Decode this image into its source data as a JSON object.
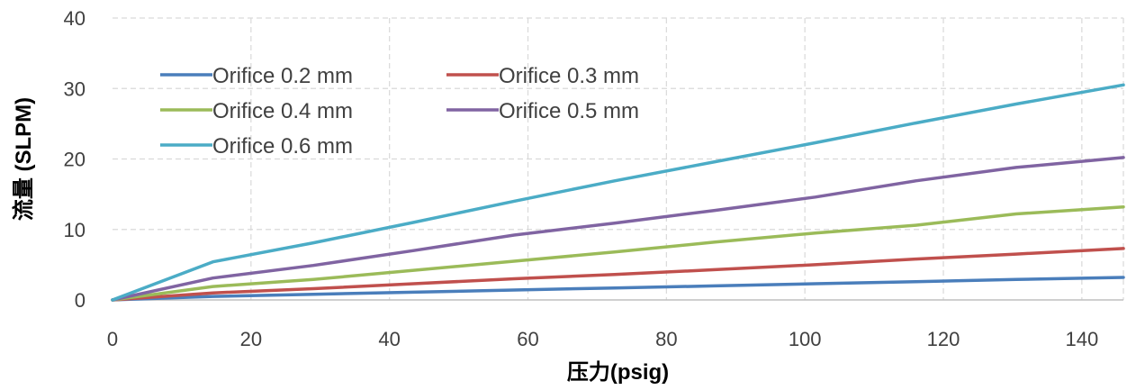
{
  "chart_data": {
    "type": "line",
    "xlabel": "压力(psig)",
    "ylabel": "流量 (SLPM)",
    "xlim": [
      0,
      146
    ],
    "ylim": [
      0,
      40
    ],
    "x_ticks": [
      0,
      20,
      40,
      60,
      80,
      100,
      120,
      140
    ],
    "y_ticks": [
      0,
      10,
      20,
      30,
      40
    ],
    "grid": true,
    "legend_position": "top-left",
    "series": [
      {
        "name": "Orifice 0.2 mm",
        "color": "#4a7ebb",
        "points": [
          [
            0,
            0
          ],
          [
            14.5,
            0.5
          ],
          [
            29,
            0.8
          ],
          [
            43.5,
            1.1
          ],
          [
            58,
            1.4
          ],
          [
            72.5,
            1.7
          ],
          [
            87,
            2.0
          ],
          [
            101.5,
            2.3
          ],
          [
            116,
            2.6
          ],
          [
            130.5,
            2.9
          ],
          [
            146,
            3.2
          ]
        ]
      },
      {
        "name": "Orifice 0.3 mm",
        "color": "#c0504d",
        "points": [
          [
            0,
            0
          ],
          [
            14.5,
            1.0
          ],
          [
            29,
            1.6
          ],
          [
            43.5,
            2.3
          ],
          [
            58,
            3.0
          ],
          [
            72.5,
            3.6
          ],
          [
            87,
            4.3
          ],
          [
            101.5,
            5.0
          ],
          [
            116,
            5.8
          ],
          [
            130.5,
            6.5
          ],
          [
            146,
            7.3
          ]
        ]
      },
      {
        "name": "Orifice 0.4 mm",
        "color": "#9bbb59",
        "points": [
          [
            0,
            0
          ],
          [
            14.5,
            1.9
          ],
          [
            29,
            2.9
          ],
          [
            43.5,
            4.2
          ],
          [
            58,
            5.5
          ],
          [
            72.5,
            6.8
          ],
          [
            87,
            8.2
          ],
          [
            101.5,
            9.5
          ],
          [
            116,
            10.6
          ],
          [
            130.5,
            12.2
          ],
          [
            146,
            13.2
          ]
        ]
      },
      {
        "name": "Orifice 0.5 mm",
        "color": "#8064a2",
        "points": [
          [
            0,
            0
          ],
          [
            14.5,
            3.1
          ],
          [
            29,
            4.9
          ],
          [
            43.5,
            7.0
          ],
          [
            58,
            9.2
          ],
          [
            72.5,
            10.9
          ],
          [
            87,
            12.7
          ],
          [
            101.5,
            14.6
          ],
          [
            116,
            16.9
          ],
          [
            130.5,
            18.8
          ],
          [
            146,
            20.2
          ]
        ]
      },
      {
        "name": "Orifice 0.6 mm",
        "color": "#4bacc6",
        "points": [
          [
            0,
            0
          ],
          [
            14.5,
            5.4
          ],
          [
            29,
            8.1
          ],
          [
            43.5,
            11.0
          ],
          [
            58,
            14.0
          ],
          [
            72.5,
            16.9
          ],
          [
            87,
            19.6
          ],
          [
            101.5,
            22.3
          ],
          [
            116,
            25.1
          ],
          [
            130.5,
            27.8
          ],
          [
            146,
            30.5
          ]
        ]
      }
    ]
  }
}
